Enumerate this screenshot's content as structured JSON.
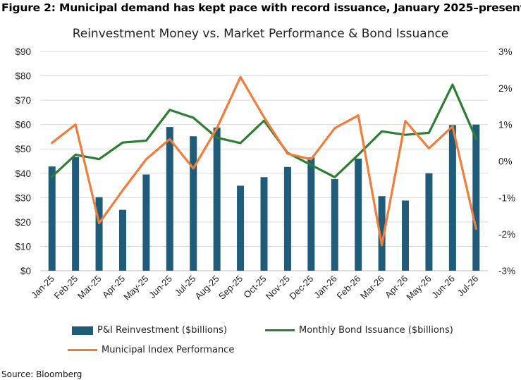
{
  "figure_title": "Figure 2: Municipal demand has kept pace with record issuance, January 2025–present",
  "source": "Source: Bloomberg",
  "colors": {
    "bars": "#1f5c7a",
    "issuance": "#2e7d32",
    "index": "#ef7d3c",
    "gridline": "#d9d9d9",
    "text": "#222222"
  },
  "chart_data": {
    "type": "bar",
    "title": "Reinvestment Money vs. Market Performance & Bond Issuance",
    "categories": [
      "Jan-25",
      "Feb-25",
      "Mar-25",
      "Apr-25",
      "May-25",
      "Jun-25",
      "Jul-25",
      "Aug-25",
      "Sep-25",
      "Oct-25",
      "Nov-25",
      "Dec-25",
      "Jan-26",
      "Feb-26",
      "Mar-26",
      "Apr-26",
      "May-26",
      "Jun-26",
      "Jul-26"
    ],
    "left_axis": {
      "ylim": [
        0,
        90
      ],
      "ticks": [
        0,
        10,
        20,
        30,
        40,
        50,
        60,
        70,
        80,
        90
      ],
      "tick_labels": [
        "$0",
        "$10",
        "$20",
        "$30",
        "$40",
        "$50",
        "$60",
        "$70",
        "$80",
        "$90"
      ]
    },
    "right_axis": {
      "ylim": [
        -3,
        3
      ],
      "ticks": [
        -3,
        -2,
        -1,
        0,
        1,
        2,
        3
      ],
      "tick_labels": [
        "-3%",
        "-2%",
        "-1%",
        "0%",
        "1%",
        "2%",
        "3%"
      ]
    },
    "grid": true,
    "legend_position": "bottom",
    "series": [
      {
        "name": "P&I Reinvestment ($billions)",
        "kind": "bar",
        "axis": "left",
        "values": [
          42.8,
          46.6,
          30.2,
          25.0,
          39.5,
          59.0,
          55.2,
          58.8,
          34.9,
          38.4,
          42.6,
          46.5,
          37.6,
          46.0,
          30.6,
          28.8,
          40.0,
          59.8,
          60.0
        ]
      },
      {
        "name": "Monthly Bond Issuance ($billions)",
        "kind": "line",
        "axis": "left",
        "values": [
          38.6,
          47.6,
          45.8,
          52.6,
          53.4,
          66.0,
          62.8,
          54.6,
          52.4,
          61.6,
          48.4,
          43.4,
          38.4,
          47.6,
          57.2,
          55.8,
          56.6,
          76.4,
          54.2
        ]
      },
      {
        "name": "Municipal Index Performance",
        "kind": "line",
        "axis": "right",
        "values": [
          0.5,
          1.0,
          -1.7,
          -0.8,
          0.05,
          0.6,
          -0.2,
          0.9,
          2.3,
          1.2,
          0.2,
          0.05,
          0.9,
          1.25,
          -2.3,
          1.1,
          0.35,
          0.95,
          -1.85
        ]
      }
    ]
  }
}
